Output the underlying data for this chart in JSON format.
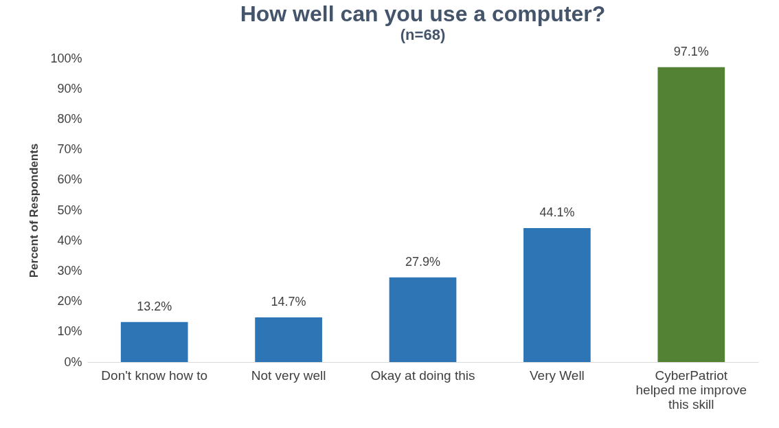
{
  "chart_data": {
    "type": "bar",
    "title": "How well can you use a computer?",
    "subtitle": "(n=68)",
    "ylabel": "Percent of Respondents",
    "categories": [
      "Don't know how to",
      "Not very well",
      "Okay at doing this",
      "Very Well",
      "CyberPatriot helped me improve this skill"
    ],
    "values": [
      13.2,
      14.7,
      27.9,
      44.1,
      97.1
    ],
    "colors": [
      "#2e75b6",
      "#2e75b6",
      "#2e75b6",
      "#2e75b6",
      "#548235"
    ],
    "value_labels": [
      "13.2%",
      "14.7%",
      "27.9%",
      "44.1%",
      "97.1%"
    ],
    "ylim": [
      0,
      100
    ],
    "yticks": [
      {
        "value": 0,
        "label": "0%"
      },
      {
        "value": 10,
        "label": "10%"
      },
      {
        "value": 20,
        "label": "20%"
      },
      {
        "value": 30,
        "label": "30%"
      },
      {
        "value": 40,
        "label": "40%"
      },
      {
        "value": 50,
        "label": "50%"
      },
      {
        "value": 60,
        "label": "60%"
      },
      {
        "value": 70,
        "label": "70%"
      },
      {
        "value": 80,
        "label": "80%"
      },
      {
        "value": 90,
        "label": "90%"
      },
      {
        "value": 100,
        "label": "100%"
      }
    ],
    "grid": false
  }
}
